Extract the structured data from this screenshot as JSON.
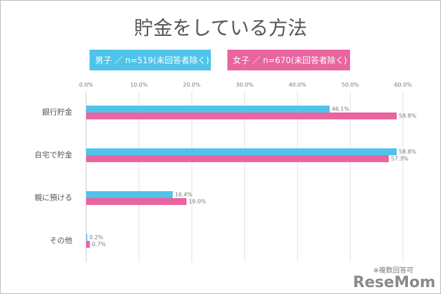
{
  "chart_data": {
    "type": "hbar",
    "title": "貯金をしている方法",
    "categories": [
      "銀行貯金",
      "自宅で貯金",
      "親に預ける",
      "その他"
    ],
    "series": [
      {
        "name": "男子 ／ n=519(未回答者除く)",
        "color": "#4fc3ea",
        "values": [
          46.1,
          58.8,
          16.4,
          0.2
        ],
        "value_labels": [
          "46.1%",
          "58.8%",
          "16.4%",
          "0.2%"
        ]
      },
      {
        "name": "女子 ／ n=670(未回答者除く)",
        "color": "#e8659f",
        "values": [
          58.8,
          57.3,
          19.0,
          0.7
        ],
        "value_labels": [
          "58.8%",
          "57.3%",
          "19.0%",
          "0.7%"
        ]
      }
    ],
    "xlim": [
      0,
      60
    ],
    "xticks": [
      {
        "value": 0,
        "label": "0.0%"
      },
      {
        "value": 10,
        "label": "10.0%"
      },
      {
        "value": 20,
        "label": "20.0%"
      },
      {
        "value": 30,
        "label": "30.0%"
      },
      {
        "value": 40,
        "label": "40.0%"
      },
      {
        "value": 50,
        "label": "50.0%"
      },
      {
        "value": 60,
        "label": "60.0%"
      }
    ],
    "grid": true,
    "note": "※複数回答可",
    "watermark": "ReseMom"
  }
}
